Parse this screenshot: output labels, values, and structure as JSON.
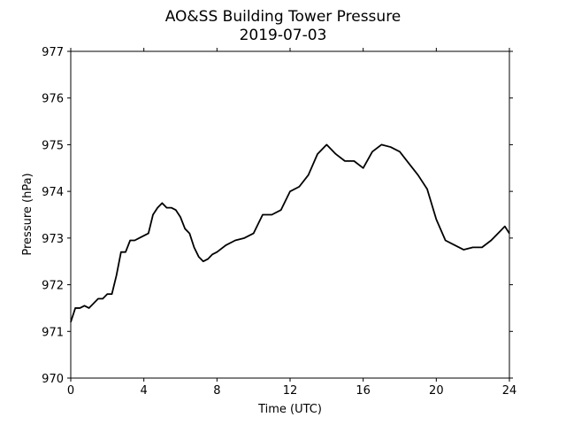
{
  "chart_data": {
    "type": "line",
    "title": "AO&SS Building Tower Pressure",
    "subtitle": "2019-07-03",
    "x_label": "Time (UTC)",
    "y_label": "Pressure (hPa)",
    "x": [
      0,
      0.25,
      0.5,
      0.75,
      1,
      1.25,
      1.5,
      1.75,
      2,
      2.25,
      2.5,
      2.75,
      3,
      3.25,
      3.5,
      3.75,
      4,
      4.25,
      4.5,
      4.75,
      5,
      5.25,
      5.5,
      5.75,
      6,
      6.25,
      6.5,
      6.75,
      7,
      7.25,
      7.5,
      7.75,
      8,
      8.5,
      9,
      9.5,
      10,
      10.5,
      11,
      11.5,
      12,
      12.5,
      13,
      13.5,
      14,
      14.5,
      15,
      15.5,
      16,
      16.5,
      17,
      17.5,
      18,
      18.5,
      19,
      19.5,
      20,
      20.5,
      21,
      21.5,
      22,
      22.5,
      23,
      23.5,
      23.75,
      24
    ],
    "series": [
      {
        "name": "Pressure",
        "color": "#000000",
        "values": [
          971.2,
          971.5,
          971.5,
          971.55,
          971.5,
          971.6,
          971.7,
          971.7,
          971.8,
          971.8,
          972.2,
          972.7,
          972.7,
          972.95,
          972.95,
          973.0,
          973.05,
          973.1,
          973.5,
          973.65,
          973.75,
          973.65,
          973.65,
          973.6,
          973.45,
          973.2,
          973.1,
          972.8,
          972.6,
          972.5,
          972.55,
          972.65,
          972.7,
          972.85,
          972.95,
          973.0,
          973.1,
          973.5,
          973.5,
          973.6,
          974.0,
          974.1,
          974.35,
          974.8,
          975.0,
          974.8,
          974.65,
          974.65,
          974.5,
          974.85,
          975.0,
          974.95,
          974.85,
          974.6,
          974.35,
          974.05,
          973.4,
          972.95,
          972.85,
          972.75,
          972.8,
          972.8,
          972.95,
          973.15,
          973.25,
          973.1
        ]
      }
    ],
    "xlim": [
      0,
      24
    ],
    "xticks": [
      0,
      4,
      8,
      12,
      16,
      20,
      24
    ],
    "ylim": [
      970,
      977
    ],
    "yticks": [
      970,
      971,
      972,
      973,
      974,
      975,
      976,
      977
    ],
    "grid": false
  }
}
